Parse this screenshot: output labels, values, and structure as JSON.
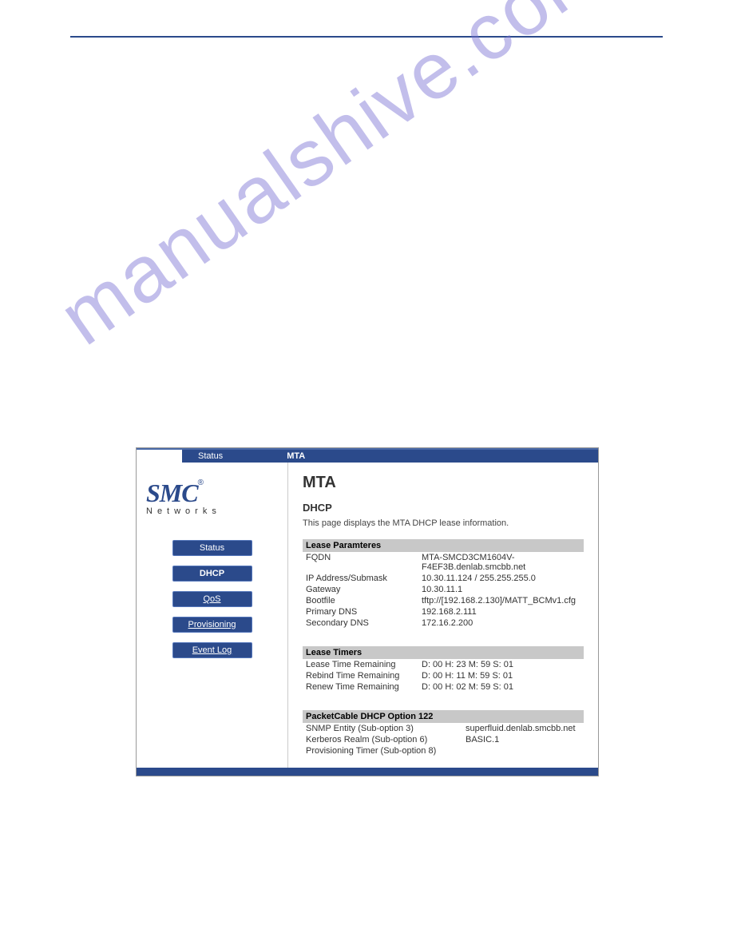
{
  "watermark": "manualshive.com",
  "topbar": {
    "tab_status": "Status",
    "tab_active": "MTA"
  },
  "logo": {
    "brand": "SMC",
    "reg": "®",
    "sub": "Networks"
  },
  "sidebar": {
    "items": [
      {
        "label": "Status"
      },
      {
        "label": "DHCP"
      },
      {
        "label": "QoS"
      },
      {
        "label": "Provisioning"
      },
      {
        "label": "Event Log"
      }
    ]
  },
  "content": {
    "title": "MTA",
    "subtitle": "DHCP",
    "description": "This page displays the MTA DHCP lease information.",
    "lease_params": {
      "header": "Lease Paramteres",
      "rows": [
        {
          "k": "FQDN",
          "v": "MTA-SMCD3CM1604V-F4EF3B.denlab.smcbb.net"
        },
        {
          "k": "IP Address/Submask",
          "v": "10.30.11.124 / 255.255.255.0"
        },
        {
          "k": "Gateway",
          "v": "10.30.11.1"
        },
        {
          "k": "Bootfile",
          "v": "tftp://[192.168.2.130]/MATT_BCMv1.cfg"
        },
        {
          "k": "Primary DNS",
          "v": "192.168.2.111"
        },
        {
          "k": "Secondary DNS",
          "v": "172.16.2.200"
        }
      ]
    },
    "lease_timers": {
      "header": "Lease Timers",
      "rows": [
        {
          "k": "Lease Time Remaining",
          "v": "D: 00 H: 23 M: 59 S: 01"
        },
        {
          "k": "Rebind Time Remaining",
          "v": "D: 00 H: 11 M: 59 S: 01"
        },
        {
          "k": "Renew Time Remaining",
          "v": "D: 00 H: 02 M: 59 S: 01"
        }
      ]
    },
    "option122": {
      "header": "PacketCable DHCP Option 122",
      "rows": [
        {
          "k": "SNMP Entity (Sub-option 3)",
          "v": "superfluid.denlab.smcbb.net"
        },
        {
          "k": "Kerberos Realm (Sub-option 6)",
          "v": "BASIC.1"
        },
        {
          "k": "Provisioning Timer (Sub-option 8)",
          "v": ""
        }
      ]
    }
  }
}
